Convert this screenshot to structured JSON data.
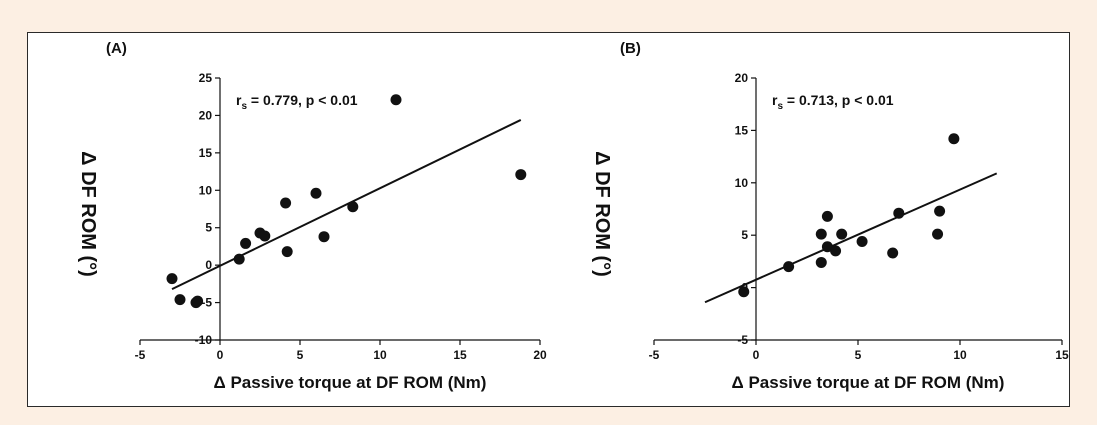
{
  "chart_data": [
    {
      "type": "scatter",
      "panel_label": "(A)",
      "annotation": {
        "r": "r",
        "sub": "s",
        "text": " = 0.779,  p < 0.01"
      },
      "xlabel": "Δ Passive torque at DF ROM (Nm)",
      "ylabel": "Δ DF ROM (°)",
      "xlim": [
        -5,
        20
      ],
      "ylim": [
        -10,
        25
      ],
      "xticks": [
        -5,
        0,
        5,
        10,
        15,
        20
      ],
      "yticks": [
        -10,
        -5,
        0,
        5,
        10,
        15,
        20,
        25
      ],
      "points": [
        {
          "x": -3.0,
          "y": -1.8
        },
        {
          "x": -2.5,
          "y": -4.6
        },
        {
          "x": -1.5,
          "y": -5.0
        },
        {
          "x": -1.4,
          "y": -4.8
        },
        {
          "x": 1.2,
          "y": 0.8
        },
        {
          "x": 1.6,
          "y": 2.9
        },
        {
          "x": 2.5,
          "y": 4.3
        },
        {
          "x": 2.8,
          "y": 3.9
        },
        {
          "x": 4.1,
          "y": 8.3
        },
        {
          "x": 4.2,
          "y": 1.8
        },
        {
          "x": 6.0,
          "y": 9.6
        },
        {
          "x": 6.5,
          "y": 3.8
        },
        {
          "x": 8.3,
          "y": 7.8
        },
        {
          "x": 11.0,
          "y": 22.1
        },
        {
          "x": 18.8,
          "y": 12.1
        }
      ],
      "fit_line": {
        "x": [
          -3.0,
          18.8
        ],
        "y": [
          -3.2,
          19.4
        ]
      }
    },
    {
      "type": "scatter",
      "panel_label": "(B)",
      "annotation": {
        "r": "r",
        "sub": "s",
        "text": " = 0.713,  p < 0.01"
      },
      "xlabel": "Δ Passive torque at DF ROM (Nm)",
      "ylabel": "Δ DF ROM (°)",
      "xlim": [
        -5,
        15
      ],
      "ylim": [
        -5,
        20
      ],
      "xticks": [
        -5,
        0,
        5,
        10,
        15
      ],
      "yticks": [
        -5,
        0,
        5,
        10,
        15,
        20
      ],
      "points": [
        {
          "x": -0.6,
          "y": -0.4
        },
        {
          "x": 1.6,
          "y": 2.0
        },
        {
          "x": 3.2,
          "y": 5.1
        },
        {
          "x": 3.2,
          "y": 2.4
        },
        {
          "x": 3.5,
          "y": 6.8
        },
        {
          "x": 3.5,
          "y": 3.9
        },
        {
          "x": 3.9,
          "y": 3.5
        },
        {
          "x": 4.2,
          "y": 5.1
        },
        {
          "x": 5.2,
          "y": 4.4
        },
        {
          "x": 6.7,
          "y": 3.3
        },
        {
          "x": 7.0,
          "y": 7.1
        },
        {
          "x": 8.9,
          "y": 5.1
        },
        {
          "x": 9.0,
          "y": 7.3
        },
        {
          "x": 9.7,
          "y": 14.2
        }
      ],
      "fit_line": {
        "x": [
          -2.5,
          11.8
        ],
        "y": [
          -1.4,
          10.9
        ]
      }
    }
  ]
}
